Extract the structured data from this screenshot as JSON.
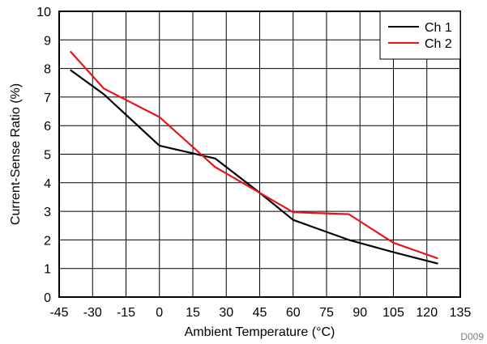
{
  "chart_data": {
    "type": "line",
    "xlabel": "Ambient Temperature (°C)",
    "ylabel": "Current-Sense Ratio (%)",
    "xlim": [
      -45,
      135
    ],
    "ylim": [
      0,
      10
    ],
    "x_ticks": [
      -45,
      -30,
      -15,
      0,
      15,
      30,
      45,
      60,
      75,
      90,
      105,
      120,
      135
    ],
    "y_ticks": [
      0,
      1,
      2,
      3,
      4,
      5,
      6,
      7,
      8,
      9,
      10
    ],
    "grid": true,
    "legend_position": "top-right",
    "series": [
      {
        "name": "Ch 1",
        "color": "#000000",
        "x": [
          -40,
          -25,
          0,
          25,
          45,
          60,
          85,
          105,
          125
        ],
        "y": [
          7.95,
          7.1,
          5.3,
          4.85,
          3.65,
          2.7,
          2.0,
          1.57,
          1.17
        ]
      },
      {
        "name": "Ch 2",
        "color": "#e8141c",
        "x": [
          -40,
          -25,
          0,
          25,
          45,
          60,
          85,
          105,
          125
        ],
        "y": [
          8.6,
          7.3,
          6.3,
          4.55,
          3.65,
          2.97,
          2.9,
          1.9,
          1.35
        ]
      }
    ],
    "figure_code": "D009"
  }
}
